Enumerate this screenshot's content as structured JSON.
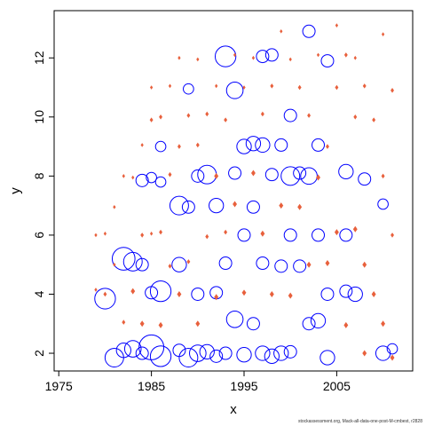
{
  "chart_data": {
    "type": "scatter",
    "title": "",
    "xlabel": "x",
    "ylabel": "y",
    "xlim": [
      1974.5,
      2013.2
    ],
    "ylim": [
      1.4,
      13.6
    ],
    "x_ticks": [
      1975,
      1985,
      1995,
      2005
    ],
    "y_ticks": [
      2,
      4,
      6,
      8,
      10,
      12
    ],
    "grid": false,
    "legend": "none",
    "colors": {
      "open_circles": "#0000ff",
      "small_markers": "#e8603c",
      "axis": "#000000"
    },
    "series": [
      {
        "marker": "open-circle",
        "color": "#0000ff",
        "points": [
          [
            1980,
            3.85,
            0.5
          ],
          [
            1981,
            1.85,
            0.45
          ],
          [
            1982,
            5.2,
            0.55
          ],
          [
            1982,
            2.1,
            0.35
          ],
          [
            1983,
            5.1,
            0.45
          ],
          [
            1983,
            2.15,
            0.4
          ],
          [
            1984,
            7.85,
            0.3
          ],
          [
            1984,
            5.0,
            0.3
          ],
          [
            1984,
            2.0,
            0.3
          ],
          [
            1985,
            7.95,
            0.25
          ],
          [
            1985,
            4.05,
            0.3
          ],
          [
            1985,
            2.2,
            0.6
          ],
          [
            1986,
            9.0,
            0.25
          ],
          [
            1986,
            7.8,
            0.25
          ],
          [
            1986,
            4.1,
            0.5
          ],
          [
            1986,
            1.9,
            0.5
          ],
          [
            1988,
            7.0,
            0.45
          ],
          [
            1988,
            5.0,
            0.35
          ],
          [
            1988,
            2.1,
            0.3
          ],
          [
            1989,
            10.95,
            0.25
          ],
          [
            1989,
            6.95,
            0.3
          ],
          [
            1989,
            1.85,
            0.45
          ],
          [
            1990,
            8.0,
            0.3
          ],
          [
            1990,
            4.0,
            0.3
          ],
          [
            1990,
            2.0,
            0.4
          ],
          [
            1991,
            8.05,
            0.45
          ],
          [
            1991,
            2.05,
            0.35
          ],
          [
            1992,
            7.0,
            0.35
          ],
          [
            1992,
            4.05,
            0.3
          ],
          [
            1992,
            1.9,
            0.3
          ],
          [
            1993,
            12.05,
            0.5
          ],
          [
            1993,
            5.05,
            0.3
          ],
          [
            1993,
            2.0,
            0.3
          ],
          [
            1994,
            10.9,
            0.4
          ],
          [
            1994,
            8.1,
            0.3
          ],
          [
            1994,
            3.15,
            0.4
          ],
          [
            1995,
            9.0,
            0.35
          ],
          [
            1995,
            6.0,
            0.3
          ],
          [
            1995,
            1.95,
            0.35
          ],
          [
            1996,
            9.1,
            0.35
          ],
          [
            1996,
            6.95,
            0.3
          ],
          [
            1996,
            3.0,
            0.3
          ],
          [
            1997,
            12.05,
            0.3
          ],
          [
            1997,
            9.05,
            0.35
          ],
          [
            1997,
            5.05,
            0.3
          ],
          [
            1997,
            2.0,
            0.35
          ],
          [
            1998,
            12.1,
            0.3
          ],
          [
            1998,
            8.05,
            0.3
          ],
          [
            1998,
            1.9,
            0.35
          ],
          [
            1999,
            9.05,
            0.3
          ],
          [
            1999,
            4.95,
            0.3
          ],
          [
            1999,
            2.0,
            0.35
          ],
          [
            2000,
            10.05,
            0.3
          ],
          [
            2000,
            8.0,
            0.45
          ],
          [
            2000,
            6.0,
            0.3
          ],
          [
            2000,
            2.05,
            0.3
          ],
          [
            2001,
            8.1,
            0.3
          ],
          [
            2001,
            4.95,
            0.3
          ],
          [
            2002,
            12.9,
            0.3
          ],
          [
            2002,
            8.0,
            0.4
          ],
          [
            2002,
            3.0,
            0.3
          ],
          [
            2003,
            9.05,
            0.3
          ],
          [
            2003,
            6.0,
            0.3
          ],
          [
            2003,
            3.1,
            0.35
          ],
          [
            2004,
            11.9,
            0.3
          ],
          [
            2004,
            4.0,
            0.3
          ],
          [
            2004,
            1.85,
            0.35
          ],
          [
            2006,
            8.15,
            0.35
          ],
          [
            2006,
            6.0,
            0.3
          ],
          [
            2006,
            4.1,
            0.3
          ],
          [
            2007,
            4.0,
            0.35
          ],
          [
            2008,
            7.9,
            0.3
          ],
          [
            2010,
            7.05,
            0.25
          ],
          [
            2010,
            2.0,
            0.35
          ],
          [
            2011,
            2.15,
            0.25
          ]
        ]
      },
      {
        "marker": "small-diamond",
        "color": "#e8603c",
        "points": [
          [
            1979,
            6.0,
            0.1
          ],
          [
            1979,
            4.15,
            0.1
          ],
          [
            1980,
            6.05,
            0.1
          ],
          [
            1980,
            4.0,
            0.12
          ],
          [
            1981,
            6.95,
            0.1
          ],
          [
            1981,
            5.0,
            0.1
          ],
          [
            1982,
            8.0,
            0.1
          ],
          [
            1982,
            3.05,
            0.12
          ],
          [
            1983,
            7.95,
            0.1
          ],
          [
            1983,
            4.1,
            0.15
          ],
          [
            1984,
            9.05,
            0.1
          ],
          [
            1984,
            6.0,
            0.12
          ],
          [
            1984,
            3.0,
            0.15
          ],
          [
            1985,
            11.0,
            0.1
          ],
          [
            1985,
            9.9,
            0.12
          ],
          [
            1985,
            6.05,
            0.1
          ],
          [
            1986,
            10.0,
            0.12
          ],
          [
            1986,
            6.1,
            0.12
          ],
          [
            1986,
            2.95,
            0.15
          ],
          [
            1987,
            11.05,
            0.1
          ],
          [
            1987,
            8.05,
            0.12
          ],
          [
            1987,
            4.95,
            0.12
          ],
          [
            1988,
            12.0,
            0.1
          ],
          [
            1988,
            9.0,
            0.12
          ],
          [
            1988,
            4.0,
            0.15
          ],
          [
            1989,
            10.05,
            0.12
          ],
          [
            1989,
            5.1,
            0.12
          ],
          [
            1990,
            11.95,
            0.1
          ],
          [
            1990,
            9.05,
            0.12
          ],
          [
            1990,
            3.0,
            0.15
          ],
          [
            1991,
            10.1,
            0.12
          ],
          [
            1991,
            5.95,
            0.12
          ],
          [
            1992,
            11.05,
            0.1
          ],
          [
            1992,
            8.0,
            0.15
          ],
          [
            1992,
            3.9,
            0.15
          ],
          [
            1993,
            9.9,
            0.12
          ],
          [
            1993,
            6.1,
            0.12
          ],
          [
            1994,
            12.1,
            0.1
          ],
          [
            1994,
            7.05,
            0.15
          ],
          [
            1995,
            11.0,
            0.1
          ],
          [
            1995,
            4.05,
            0.15
          ],
          [
            1996,
            12.0,
            0.1
          ],
          [
            1996,
            8.1,
            0.15
          ],
          [
            1997,
            10.1,
            0.12
          ],
          [
            1997,
            6.05,
            0.15
          ],
          [
            1998,
            11.05,
            0.12
          ],
          [
            1998,
            4.0,
            0.15
          ],
          [
            1999,
            12.9,
            0.1
          ],
          [
            1999,
            7.0,
            0.15
          ],
          [
            2000,
            11.95,
            0.1
          ],
          [
            2000,
            3.95,
            0.15
          ],
          [
            2001,
            11.0,
            0.12
          ],
          [
            2001,
            6.95,
            0.15
          ],
          [
            2002,
            10.05,
            0.12
          ],
          [
            2002,
            5.0,
            0.15
          ],
          [
            2003,
            12.1,
            0.1
          ],
          [
            2003,
            7.95,
            0.15
          ],
          [
            2004,
            9.0,
            0.12
          ],
          [
            2004,
            5.05,
            0.15
          ],
          [
            2005,
            13.1,
            0.1
          ],
          [
            2005,
            11.0,
            0.12
          ],
          [
            2005,
            6.1,
            0.15
          ],
          [
            2006,
            12.1,
            0.12
          ],
          [
            2006,
            2.95,
            0.15
          ],
          [
            2007,
            12.0,
            0.1
          ],
          [
            2007,
            10.0,
            0.12
          ],
          [
            2007,
            6.2,
            0.15
          ],
          [
            2008,
            11.05,
            0.12
          ],
          [
            2008,
            5.0,
            0.15
          ],
          [
            2008,
            2.0,
            0.15
          ],
          [
            2009,
            9.9,
            0.12
          ],
          [
            2009,
            4.0,
            0.15
          ],
          [
            2010,
            12.8,
            0.1
          ],
          [
            2010,
            8.0,
            0.12
          ],
          [
            2010,
            3.0,
            0.15
          ],
          [
            2011,
            10.9,
            0.12
          ],
          [
            2011,
            6.0,
            0.12
          ],
          [
            2011,
            1.85,
            0.15
          ]
        ]
      }
    ]
  },
  "footnote": "stockassessment.org, Mack-all-data-one-post-M-cmbest, r2828"
}
